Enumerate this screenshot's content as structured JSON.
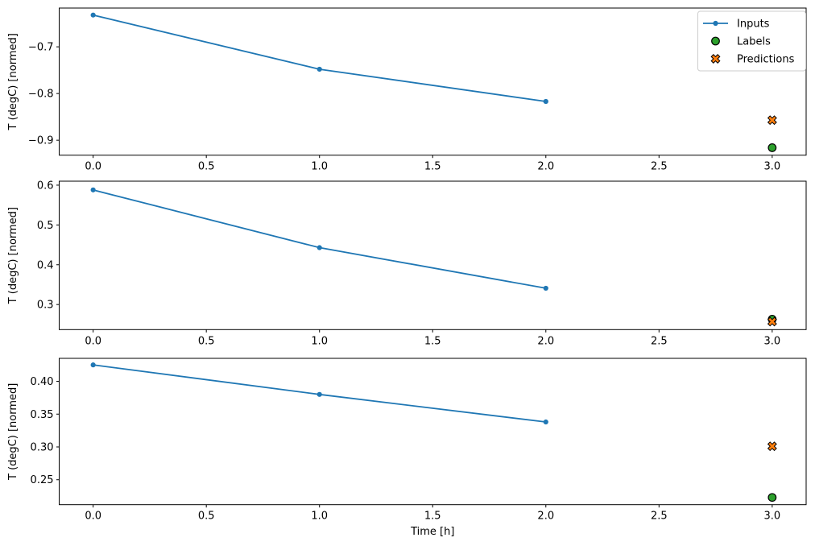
{
  "figure": {
    "background": "#ffffff",
    "spine_color": "#000000",
    "tick_color": "#000000",
    "text_color": "#000000",
    "legend": {
      "background": "#ffffff",
      "border_color": "#cccccc",
      "position": "upper right",
      "entries": [
        "Inputs",
        "Labels",
        "Predictions"
      ]
    }
  },
  "chart_data": [
    {
      "type": "line",
      "title": "",
      "xlabel": "",
      "ylabel": "T (degC) [normed]",
      "xlim": [
        -0.15,
        3.15
      ],
      "ylim": [
        -0.932,
        -0.617
      ],
      "grid": false,
      "legend_visible": true,
      "xticks": {
        "values": [
          0,
          0.5,
          1,
          1.5,
          2,
          2.5,
          3
        ],
        "labels": [
          "0.0",
          "0.5",
          "1.0",
          "1.5",
          "2.0",
          "2.5",
          "3.0"
        ]
      },
      "yticks": {
        "values": [
          -0.9,
          -0.8,
          -0.7
        ],
        "labels": [
          "−0.9",
          "−0.8",
          "−0.7"
        ]
      },
      "series": [
        {
          "name": "Inputs",
          "kind": "line+marker",
          "marker": "dot",
          "color": "#1f77b4",
          "x": [
            0,
            1,
            2
          ],
          "y": [
            -0.632,
            -0.748,
            -0.817
          ]
        },
        {
          "name": "Labels",
          "kind": "scatter",
          "marker": "circle",
          "color": "#2ca02c",
          "edge_color": "#000000",
          "x": [
            3
          ],
          "y": [
            -0.916
          ]
        },
        {
          "name": "Predictions",
          "kind": "scatter",
          "marker": "x-filled",
          "color": "#ff7f0e",
          "edge_color": "#000000",
          "x": [
            3
          ],
          "y": [
            -0.857
          ]
        }
      ]
    },
    {
      "type": "line",
      "title": "",
      "xlabel": "",
      "ylabel": "T (degC) [normed]",
      "xlim": [
        -0.15,
        3.15
      ],
      "ylim": [
        0.237,
        0.61
      ],
      "grid": false,
      "legend_visible": false,
      "xticks": {
        "values": [
          0,
          0.5,
          1,
          1.5,
          2,
          2.5,
          3
        ],
        "labels": [
          "0.0",
          "0.5",
          "1.0",
          "1.5",
          "2.0",
          "2.5",
          "3.0"
        ]
      },
      "yticks": {
        "values": [
          0.3,
          0.4,
          0.5,
          0.6
        ],
        "labels": [
          "0.3",
          "0.4",
          "0.5",
          "0.6"
        ]
      },
      "series": [
        {
          "name": "Inputs",
          "kind": "line+marker",
          "marker": "dot",
          "color": "#1f77b4",
          "x": [
            0,
            1,
            2
          ],
          "y": [
            0.588,
            0.443,
            0.341
          ]
        },
        {
          "name": "Labels",
          "kind": "scatter",
          "marker": "circle",
          "color": "#2ca02c",
          "edge_color": "#000000",
          "x": [
            3
          ],
          "y": [
            0.263
          ]
        },
        {
          "name": "Predictions",
          "kind": "scatter",
          "marker": "x-filled",
          "color": "#ff7f0e",
          "edge_color": "#000000",
          "x": [
            3
          ],
          "y": [
            0.257
          ]
        }
      ]
    },
    {
      "type": "line",
      "title": "",
      "xlabel": "Time [h]",
      "ylabel": "T (degC) [normed]",
      "xlim": [
        -0.15,
        3.15
      ],
      "ylim": [
        0.212,
        0.435
      ],
      "grid": false,
      "legend_visible": false,
      "xticks": {
        "values": [
          0,
          0.5,
          1,
          1.5,
          2,
          2.5,
          3
        ],
        "labels": [
          "0.0",
          "0.5",
          "1.0",
          "1.5",
          "2.0",
          "2.5",
          "3.0"
        ]
      },
      "yticks": {
        "values": [
          0.25,
          0.3,
          0.35,
          0.4
        ],
        "labels": [
          "0.25",
          "0.30",
          "0.35",
          "0.40"
        ]
      },
      "series": [
        {
          "name": "Inputs",
          "kind": "line+marker",
          "marker": "dot",
          "color": "#1f77b4",
          "x": [
            0,
            1,
            2
          ],
          "y": [
            0.425,
            0.38,
            0.338
          ]
        },
        {
          "name": "Labels",
          "kind": "scatter",
          "marker": "circle",
          "color": "#2ca02c",
          "edge_color": "#000000",
          "x": [
            3
          ],
          "y": [
            0.223
          ]
        },
        {
          "name": "Predictions",
          "kind": "scatter",
          "marker": "x-filled",
          "color": "#ff7f0e",
          "edge_color": "#000000",
          "x": [
            3
          ],
          "y": [
            0.301
          ]
        }
      ]
    }
  ]
}
